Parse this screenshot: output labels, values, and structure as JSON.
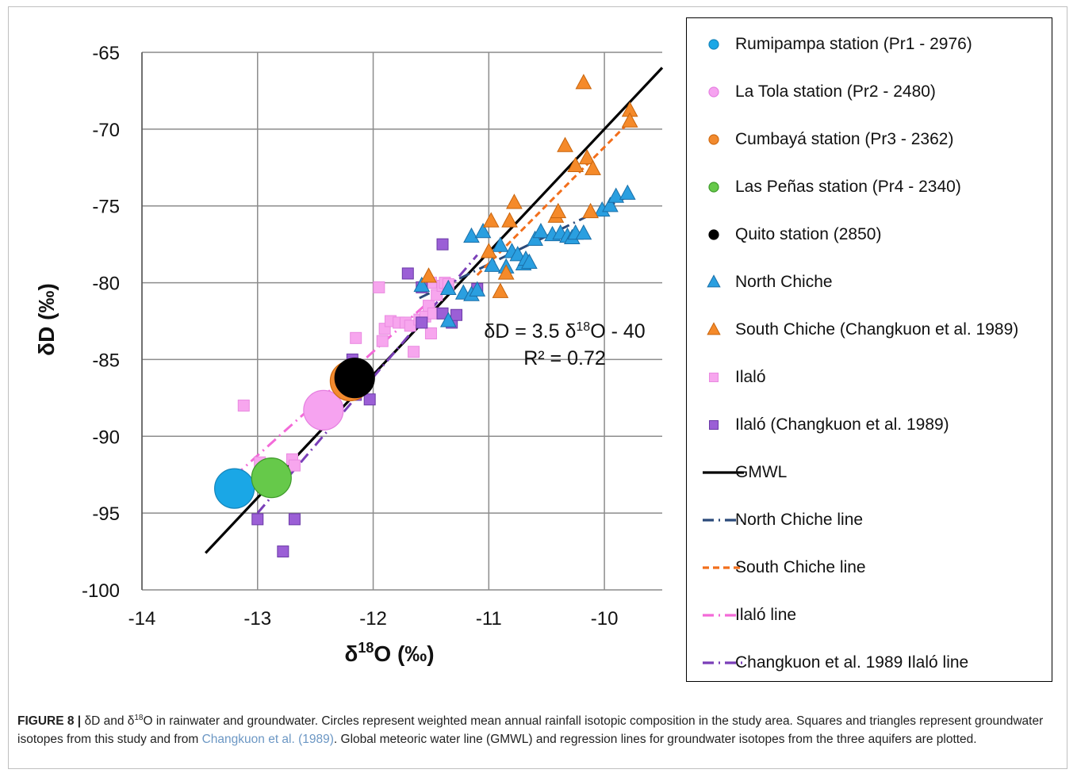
{
  "chart_data": {
    "type": "scatter",
    "xlabel_prefix": "δ",
    "xlabel_sup": "18",
    "xlabel_suffix": "O (‰)",
    "ylabel": "δD (‰)",
    "xlim": [
      -14,
      -9.5
    ],
    "ylim": [
      -100,
      -65
    ],
    "x_ticks": [
      -14,
      -13,
      -12,
      -11,
      -10
    ],
    "y_ticks": [
      -65,
      -70,
      -75,
      -80,
      -85,
      -90,
      -95,
      -100
    ],
    "x_tick_labels": [
      "-14",
      "-13",
      "-12",
      "-11",
      "-10"
    ],
    "y_tick_labels": [
      "-65",
      "-70",
      "-75",
      "-80",
      "-85",
      "-90",
      "-95",
      "-100"
    ],
    "grid": true,
    "legend_position": "right",
    "annotation_line1_prefix": "δD = 3.5 δ",
    "annotation_line1_sup": "18",
    "annotation_line1_suffix": "O - 40",
    "annotation_line2": "R² = 0.72",
    "series": [
      {
        "name": "Rumipampa station (Pr1 - 2976)",
        "kind": "circle",
        "color": "#1aa7e6",
        "stroke": "#1585bb",
        "points": [
          {
            "x": -13.2,
            "y": -93.4
          }
        ]
      },
      {
        "name": "La Tola station (Pr2 - 2480)",
        "kind": "circle",
        "color": "#f6a3f0",
        "stroke": "#e57fe0",
        "points": [
          {
            "x": -12.43,
            "y": -88.3
          }
        ]
      },
      {
        "name": "Cumbayá station (Pr3 - 2362)",
        "kind": "circle",
        "color": "#f28a2e",
        "stroke": "#d06a10",
        "points": [
          {
            "x": -12.2,
            "y": -86.4
          }
        ]
      },
      {
        "name": "Las Peñas station (Pr4 - 2340)",
        "kind": "circle",
        "color": "#66c94a",
        "stroke": "#3e9a2a",
        "points": [
          {
            "x": -12.88,
            "y": -92.7
          }
        ]
      },
      {
        "name": "Quito station (2850)",
        "kind": "circle",
        "color": "#000000",
        "stroke": "#000000",
        "points": [
          {
            "x": -12.16,
            "y": -86.2
          }
        ]
      },
      {
        "name": "North Chiche",
        "kind": "triangle",
        "color": "#2a9fe0",
        "stroke": "#1a6fa8",
        "points": [
          {
            "x": -11.58,
            "y": -80.2
          },
          {
            "x": -11.35,
            "y": -80.4
          },
          {
            "x": -11.22,
            "y": -80.7
          },
          {
            "x": -11.15,
            "y": -80.8
          },
          {
            "x": -11.1,
            "y": -80.5
          },
          {
            "x": -11.35,
            "y": -82.5
          },
          {
            "x": -11.15,
            "y": -77.0
          },
          {
            "x": -11.05,
            "y": -76.7
          },
          {
            "x": -10.97,
            "y": -78.9
          },
          {
            "x": -10.9,
            "y": -77.6
          },
          {
            "x": -10.85,
            "y": -79.0
          },
          {
            "x": -10.8,
            "y": -78.0
          },
          {
            "x": -10.75,
            "y": -78.2
          },
          {
            "x": -10.7,
            "y": -78.8
          },
          {
            "x": -10.68,
            "y": -78.5
          },
          {
            "x": -10.65,
            "y": -78.7
          },
          {
            "x": -10.6,
            "y": -77.2
          },
          {
            "x": -10.55,
            "y": -76.7
          },
          {
            "x": -10.45,
            "y": -76.9
          },
          {
            "x": -10.38,
            "y": -76.8
          },
          {
            "x": -10.32,
            "y": -77.0
          },
          {
            "x": -10.28,
            "y": -77.1
          },
          {
            "x": -10.25,
            "y": -76.8
          },
          {
            "x": -10.18,
            "y": -76.8
          },
          {
            "x": -10.02,
            "y": -75.3
          },
          {
            "x": -9.95,
            "y": -75.0
          },
          {
            "x": -9.9,
            "y": -74.4
          },
          {
            "x": -9.8,
            "y": -74.2
          }
        ]
      },
      {
        "name": "South Chiche (Changkuon et al. 1989)",
        "kind": "triangle",
        "color": "#f58a2a",
        "stroke": "#c8640c",
        "points": [
          {
            "x": -11.52,
            "y": -79.6
          },
          {
            "x": -11.0,
            "y": -78.0
          },
          {
            "x": -10.98,
            "y": -76.0
          },
          {
            "x": -10.9,
            "y": -80.6
          },
          {
            "x": -10.85,
            "y": -79.4
          },
          {
            "x": -10.82,
            "y": -76.0
          },
          {
            "x": -10.78,
            "y": -74.8
          },
          {
            "x": -10.42,
            "y": -75.7
          },
          {
            "x": -10.4,
            "y": -75.4
          },
          {
            "x": -10.34,
            "y": -71.1
          },
          {
            "x": -10.25,
            "y": -72.4
          },
          {
            "x": -10.15,
            "y": -71.9
          },
          {
            "x": -10.1,
            "y": -72.6
          },
          {
            "x": -10.12,
            "y": -75.4
          },
          {
            "x": -10.18,
            "y": -67.0
          },
          {
            "x": -9.78,
            "y": -68.8
          },
          {
            "x": -9.78,
            "y": -69.5
          }
        ]
      },
      {
        "name": "Ilaló",
        "kind": "square",
        "color": "#f7a6ee",
        "stroke": "#e98ae0",
        "points": [
          {
            "x": -13.12,
            "y": -88.0
          },
          {
            "x": -12.98,
            "y": -91.7
          },
          {
            "x": -12.7,
            "y": -91.5
          },
          {
            "x": -12.68,
            "y": -91.9
          },
          {
            "x": -12.42,
            "y": -88.2
          },
          {
            "x": -12.15,
            "y": -83.6
          },
          {
            "x": -11.95,
            "y": -80.3
          },
          {
            "x": -11.92,
            "y": -83.8
          },
          {
            "x": -11.9,
            "y": -83.0
          },
          {
            "x": -11.85,
            "y": -82.5
          },
          {
            "x": -11.78,
            "y": -82.6
          },
          {
            "x": -11.72,
            "y": -82.6
          },
          {
            "x": -11.68,
            "y": -82.8
          },
          {
            "x": -11.65,
            "y": -84.5
          },
          {
            "x": -11.6,
            "y": -82.4
          },
          {
            "x": -11.55,
            "y": -82.2
          },
          {
            "x": -11.52,
            "y": -81.5
          },
          {
            "x": -11.5,
            "y": -83.3
          },
          {
            "x": -11.48,
            "y": -82.0
          },
          {
            "x": -11.5,
            "y": -80.0
          },
          {
            "x": -11.45,
            "y": -80.8
          },
          {
            "x": -11.4,
            "y": -80.2
          },
          {
            "x": -11.38,
            "y": -80.0
          },
          {
            "x": -11.35,
            "y": -80.1
          }
        ]
      },
      {
        "name": "Ilaló (Changkuon et al. 1989)",
        "kind": "square",
        "color": "#9b5fd6",
        "stroke": "#6a3aa6",
        "points": [
          {
            "x": -13.0,
            "y": -95.4
          },
          {
            "x": -12.78,
            "y": -97.5
          },
          {
            "x": -12.68,
            "y": -95.4
          },
          {
            "x": -12.48,
            "y": -87.6
          },
          {
            "x": -12.18,
            "y": -85.0
          },
          {
            "x": -12.15,
            "y": -87.3
          },
          {
            "x": -12.03,
            "y": -87.6
          },
          {
            "x": -11.7,
            "y": -79.4
          },
          {
            "x": -11.58,
            "y": -80.3
          },
          {
            "x": -11.58,
            "y": -82.6
          },
          {
            "x": -11.4,
            "y": -77.5
          },
          {
            "x": -11.4,
            "y": -82.0
          },
          {
            "x": -11.32,
            "y": -82.6
          },
          {
            "x": -11.28,
            "y": -82.1
          },
          {
            "x": -11.1,
            "y": -80.4
          }
        ]
      },
      {
        "name": "GMWL",
        "kind": "line",
        "color": "#000000",
        "dash": "",
        "points": [
          {
            "x": -13.45,
            "y": -97.6
          },
          {
            "x": -9.5,
            "y": -66.0
          }
        ]
      },
      {
        "name": "North Chiche line",
        "kind": "line",
        "color": "#2b4a7a",
        "dash": "14 6 2 6",
        "points": [
          {
            "x": -11.6,
            "y": -81.0
          },
          {
            "x": -9.8,
            "y": -74.4
          }
        ]
      },
      {
        "name": "South Chiche line",
        "kind": "line",
        "color": "#f26f1c",
        "dash": "8 5",
        "points": [
          {
            "x": -11.1,
            "y": -79.5
          },
          {
            "x": -9.78,
            "y": -69.5
          }
        ]
      },
      {
        "name": "Ilaló line",
        "kind": "line",
        "color": "#f36ad8",
        "dash": "14 6 2 6",
        "points": [
          {
            "x": -13.2,
            "y": -92.6
          },
          {
            "x": -11.35,
            "y": -80.1
          }
        ]
      },
      {
        "name": "Changkuon et al. 1989 Ilaló line",
        "kind": "line",
        "color": "#7a3fb8",
        "dash": "14 6 2 6",
        "points": [
          {
            "x": -13.0,
            "y": -95.0
          },
          {
            "x": -11.1,
            "y": -78.2
          }
        ]
      }
    ]
  },
  "legend": {
    "items": [
      {
        "label": "Rumipampa station (Pr1 - 2976)",
        "symbol": "circle",
        "color": "#1aa7e6",
        "stroke": "#1585bb"
      },
      {
        "label": "La Tola station (Pr2 - 2480)",
        "symbol": "circle",
        "color": "#f6a3f0",
        "stroke": "#e57fe0"
      },
      {
        "label": "Cumbayá station (Pr3 - 2362)",
        "symbol": "circle",
        "color": "#f28a2e",
        "stroke": "#d06a10"
      },
      {
        "label": "Las Peñas station (Pr4 - 2340)",
        "symbol": "circle",
        "color": "#66c94a",
        "stroke": "#3e9a2a"
      },
      {
        "label": "Quito station (2850)",
        "symbol": "circle",
        "color": "#000000",
        "stroke": "#000000"
      },
      {
        "label": "North Chiche",
        "symbol": "triangle",
        "color": "#2a9fe0",
        "stroke": "#1a6fa8"
      },
      {
        "label": "South Chiche (Changkuon et al. 1989)",
        "symbol": "triangle",
        "color": "#f58a2a",
        "stroke": "#c8640c"
      },
      {
        "label": "Ilaló",
        "symbol": "square",
        "color": "#f7a6ee",
        "stroke": "#e98ae0"
      },
      {
        "label": "Ilaló (Changkuon et al. 1989)",
        "symbol": "square",
        "color": "#9b5fd6",
        "stroke": "#6a3aa6"
      },
      {
        "label": "GMWL",
        "symbol": "line",
        "color": "#000000",
        "dash": ""
      },
      {
        "label": "North Chiche line",
        "symbol": "line",
        "color": "#2b4a7a",
        "dash": "14 6 2 6"
      },
      {
        "label": "South Chiche line",
        "symbol": "line",
        "color": "#f26f1c",
        "dash": "8 5"
      },
      {
        "label": "Ilaló line",
        "symbol": "line",
        "color": "#f36ad8",
        "dash": "14 6 2 6"
      },
      {
        "label": "Changkuon et al. 1989 Ilaló line",
        "symbol": "line",
        "color": "#7a3fb8",
        "dash": "14 6 2 6"
      }
    ]
  },
  "caption": {
    "fig_label": "FIGURE 8 |",
    "t1": " δD and δ",
    "sup": "18",
    "t2": "O in rainwater and groundwater. Circles represent weighted mean annual rainfall isotopic composition in the study area. Squares and triangles represent groundwater isotopes from this study and from ",
    "cite": "Changkuon et al. (1989)",
    "t3": ". Global meteoric water line (GMWL) and regression lines for groundwater isotopes from the three aquifers are plotted."
  }
}
